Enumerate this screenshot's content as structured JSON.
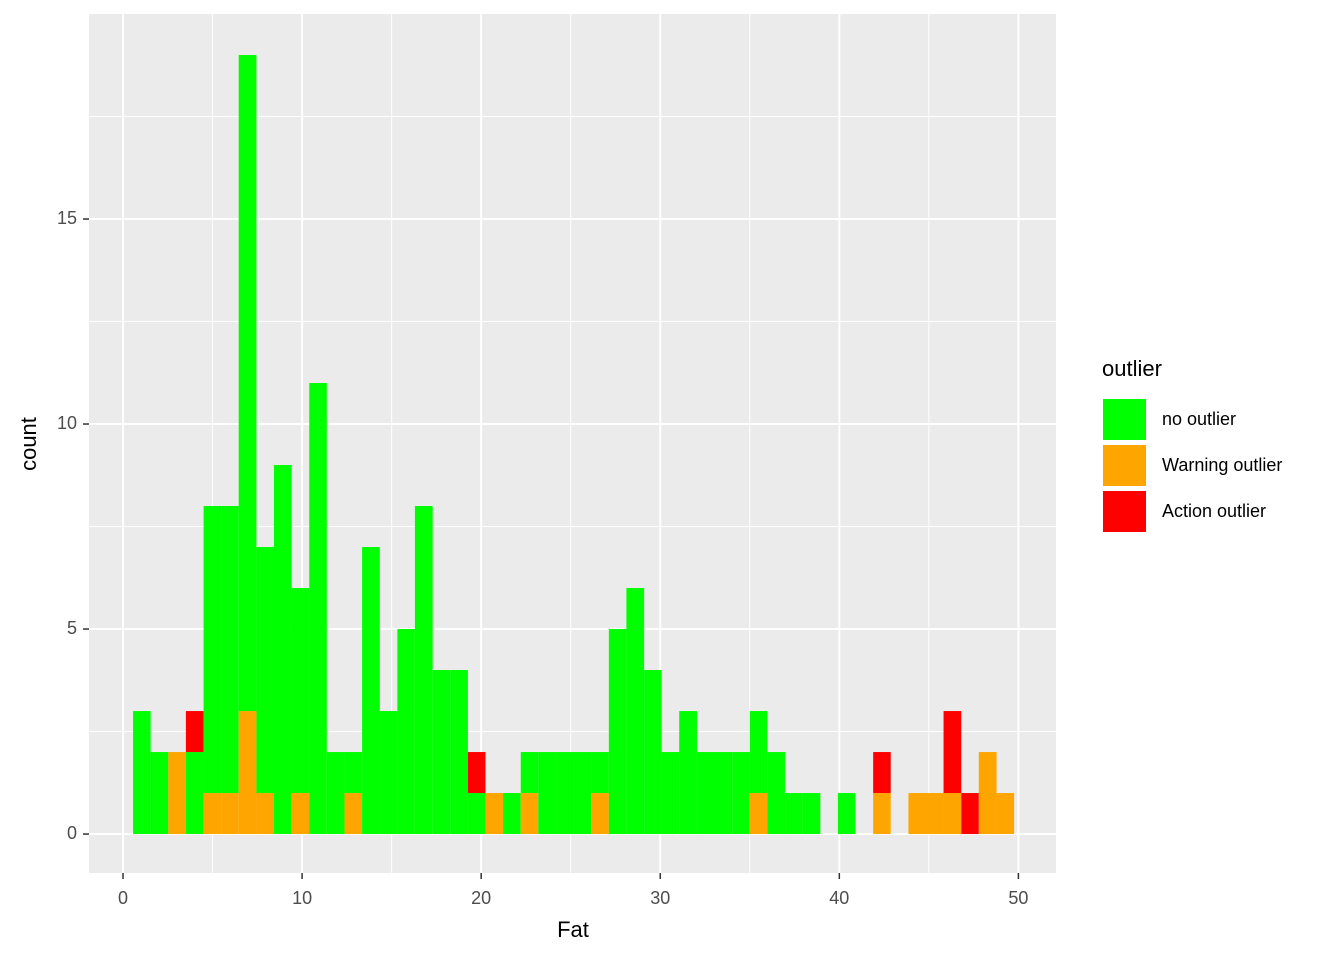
{
  "chart_data": {
    "type": "histogram",
    "x_label": "Fat",
    "y_label": "count",
    "legend_title": "outlier",
    "legend_position": "right",
    "grid": true,
    "stacked": true,
    "bins": [
      0.56,
      1.54,
      2.53,
      3.51,
      4.5,
      5.48,
      6.46,
      7.45,
      8.43,
      9.42,
      10.4,
      11.38,
      12.37,
      13.35,
      14.34,
      15.32,
      16.3,
      17.29,
      18.27,
      19.26,
      20.24,
      21.22,
      22.21,
      23.19,
      24.18,
      25.16,
      26.14,
      27.13,
      28.11,
      29.1,
      30.08,
      31.06,
      32.05,
      33.03,
      34.02,
      35.0,
      35.98,
      36.97,
      37.95,
      38.94,
      39.92,
      40.9,
      41.89,
      42.87,
      43.86,
      44.84,
      45.82,
      46.81,
      47.79,
      48.78,
      49.76
    ],
    "series": [
      {
        "name": "no outlier",
        "color": "#00ff00",
        "values": [
          3,
          2,
          0,
          2,
          7,
          7,
          16,
          6,
          9,
          5,
          11,
          2,
          1,
          7,
          3,
          5,
          8,
          4,
          4,
          1,
          0,
          1,
          1,
          2,
          2,
          2,
          1,
          5,
          6,
          4,
          2,
          3,
          2,
          2,
          2,
          2,
          2,
          1,
          1,
          0,
          1,
          0,
          0,
          0,
          0,
          0,
          0,
          0,
          0,
          0
        ]
      },
      {
        "name": "Warning outlier",
        "color": "#ffa500",
        "values": [
          0,
          0,
          2,
          0,
          1,
          1,
          3,
          1,
          0,
          1,
          0,
          0,
          1,
          0,
          0,
          0,
          0,
          0,
          0,
          0,
          1,
          0,
          1,
          0,
          0,
          0,
          1,
          0,
          0,
          0,
          0,
          0,
          0,
          0,
          0,
          1,
          0,
          0,
          0,
          0,
          0,
          0,
          1,
          0,
          1,
          1,
          1,
          0,
          2,
          1
        ]
      },
      {
        "name": "Action outlier",
        "color": "#ff0000",
        "values": [
          0,
          0,
          0,
          1,
          0,
          0,
          0,
          0,
          0,
          0,
          0,
          0,
          0,
          0,
          0,
          0,
          0,
          0,
          0,
          1,
          0,
          0,
          0,
          0,
          0,
          0,
          0,
          0,
          0,
          0,
          0,
          0,
          0,
          0,
          0,
          0,
          0,
          0,
          0,
          0,
          0,
          0,
          1,
          0,
          0,
          0,
          2,
          1,
          0,
          0
        ]
      }
    ],
    "stack_order": [
      1,
      0,
      2
    ],
    "xlim": [
      -1.9,
      52.1
    ],
    "ylim": [
      -0.95,
      20
    ],
    "xticks": [
      0,
      10,
      20,
      30,
      40,
      50
    ],
    "yticks": [
      0,
      5,
      10,
      15
    ]
  }
}
